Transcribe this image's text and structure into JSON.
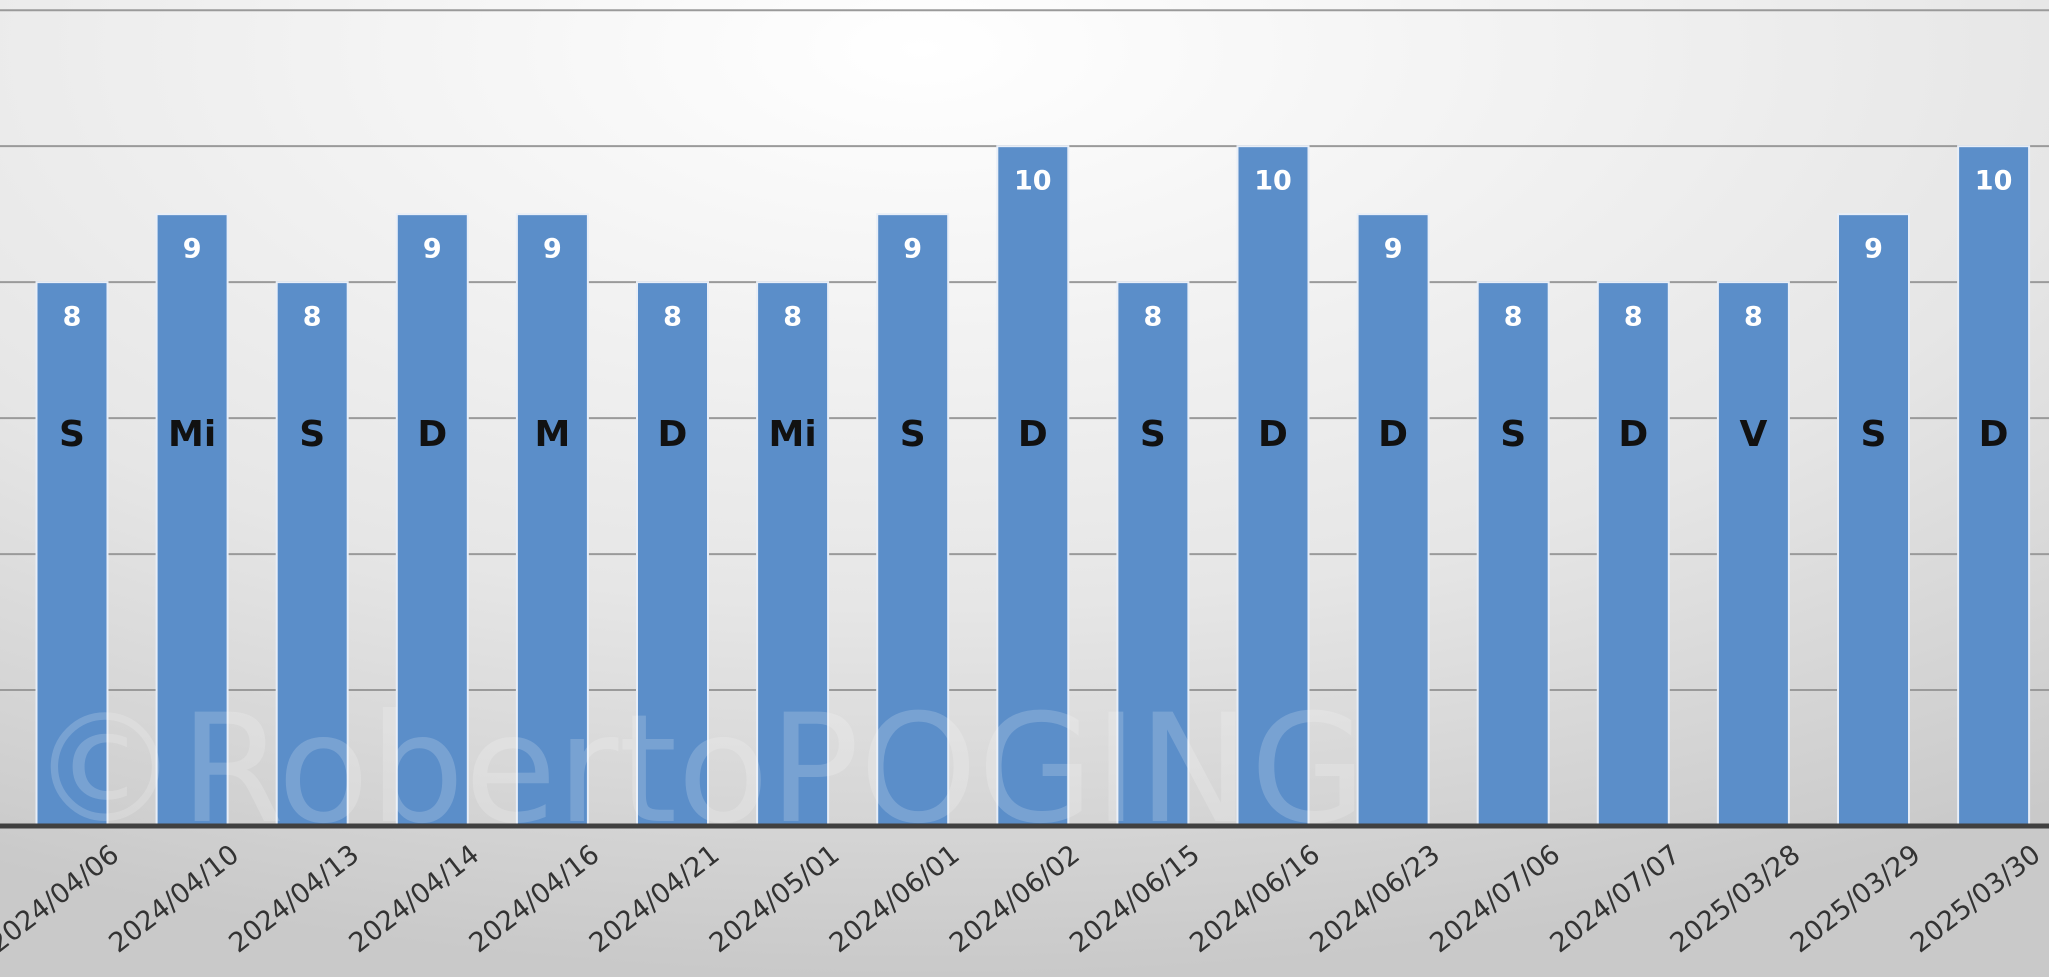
{
  "chart_data": {
    "type": "bar",
    "categories": [
      "2024/04/06",
      "2024/04/10",
      "2024/04/13",
      "2024/04/14",
      "2024/04/16",
      "2024/04/21",
      "2024/05/01",
      "2024/06/01",
      "2024/06/02",
      "2024/06/15",
      "2024/06/16",
      "2024/06/23",
      "2024/07/06",
      "2024/07/07",
      "2025/03/28",
      "2025/03/29",
      "2025/03/30"
    ],
    "values": [
      8,
      9,
      8,
      9,
      9,
      8,
      8,
      9,
      10,
      8,
      10,
      9,
      8,
      8,
      8,
      9,
      10
    ],
    "bar_labels": [
      "S",
      "Mi",
      "S",
      "D",
      "M",
      "D",
      "Mi",
      "S",
      "D",
      "S",
      "D",
      "D",
      "S",
      "D",
      "V",
      "S",
      "D"
    ],
    "color": "#5b8ec9",
    "ylim": [
      0,
      12.15
    ],
    "yticks": [
      0,
      2,
      4,
      6,
      8,
      10,
      12
    ],
    "grid": true,
    "watermark": "©RobertoPOGING"
  }
}
